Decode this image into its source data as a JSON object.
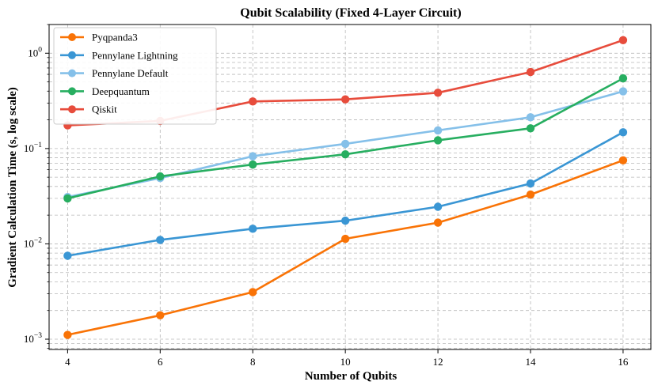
{
  "chart_data": {
    "type": "line",
    "title": "Qubit Scalability (Fixed 4-Layer Circuit)",
    "xlabel": "Number of Qubits",
    "ylabel": "Gradient Calculation Time (s, log scale)",
    "yscale": "log",
    "xlim": [
      3.6,
      16.6
    ],
    "ylim": [
      0.00078,
      2.0
    ],
    "x": [
      4,
      6,
      8,
      10,
      12,
      14,
      16
    ],
    "x_tick_labels": [
      "4",
      "6",
      "8",
      "10",
      "12",
      "14",
      "16"
    ],
    "y_ticks": [
      {
        "value": 0.001,
        "base": "10",
        "exp": "−3"
      },
      {
        "value": 0.01,
        "base": "10",
        "exp": "−2"
      },
      {
        "value": 0.1,
        "base": "10",
        "exp": "−1"
      },
      {
        "value": 1,
        "base": "10",
        "exp": "0"
      }
    ],
    "grid": true,
    "legend_position": "top-left",
    "series": [
      {
        "name": "Pyqpanda3",
        "color": "#f97306",
        "values": [
          0.00111,
          0.00178,
          0.00312,
          0.0113,
          0.0167,
          0.0329,
          0.0752
        ]
      },
      {
        "name": "Pennylane Lightning",
        "color": "#3a96d4",
        "values": [
          0.0075,
          0.011,
          0.0144,
          0.0175,
          0.0245,
          0.043,
          0.148
        ]
      },
      {
        "name": "Pennylane Default",
        "color": "#85c0e9",
        "values": [
          0.031,
          0.049,
          0.083,
          0.112,
          0.155,
          0.213,
          0.398
        ]
      },
      {
        "name": "Deepquantum",
        "color": "#27ae60",
        "values": [
          0.03,
          0.051,
          0.068,
          0.087,
          0.122,
          0.163,
          0.545
        ]
      },
      {
        "name": "Qiskit",
        "color": "#e74c3c",
        "values": [
          0.175,
          0.195,
          0.312,
          0.328,
          0.385,
          0.635,
          1.37
        ]
      }
    ]
  }
}
